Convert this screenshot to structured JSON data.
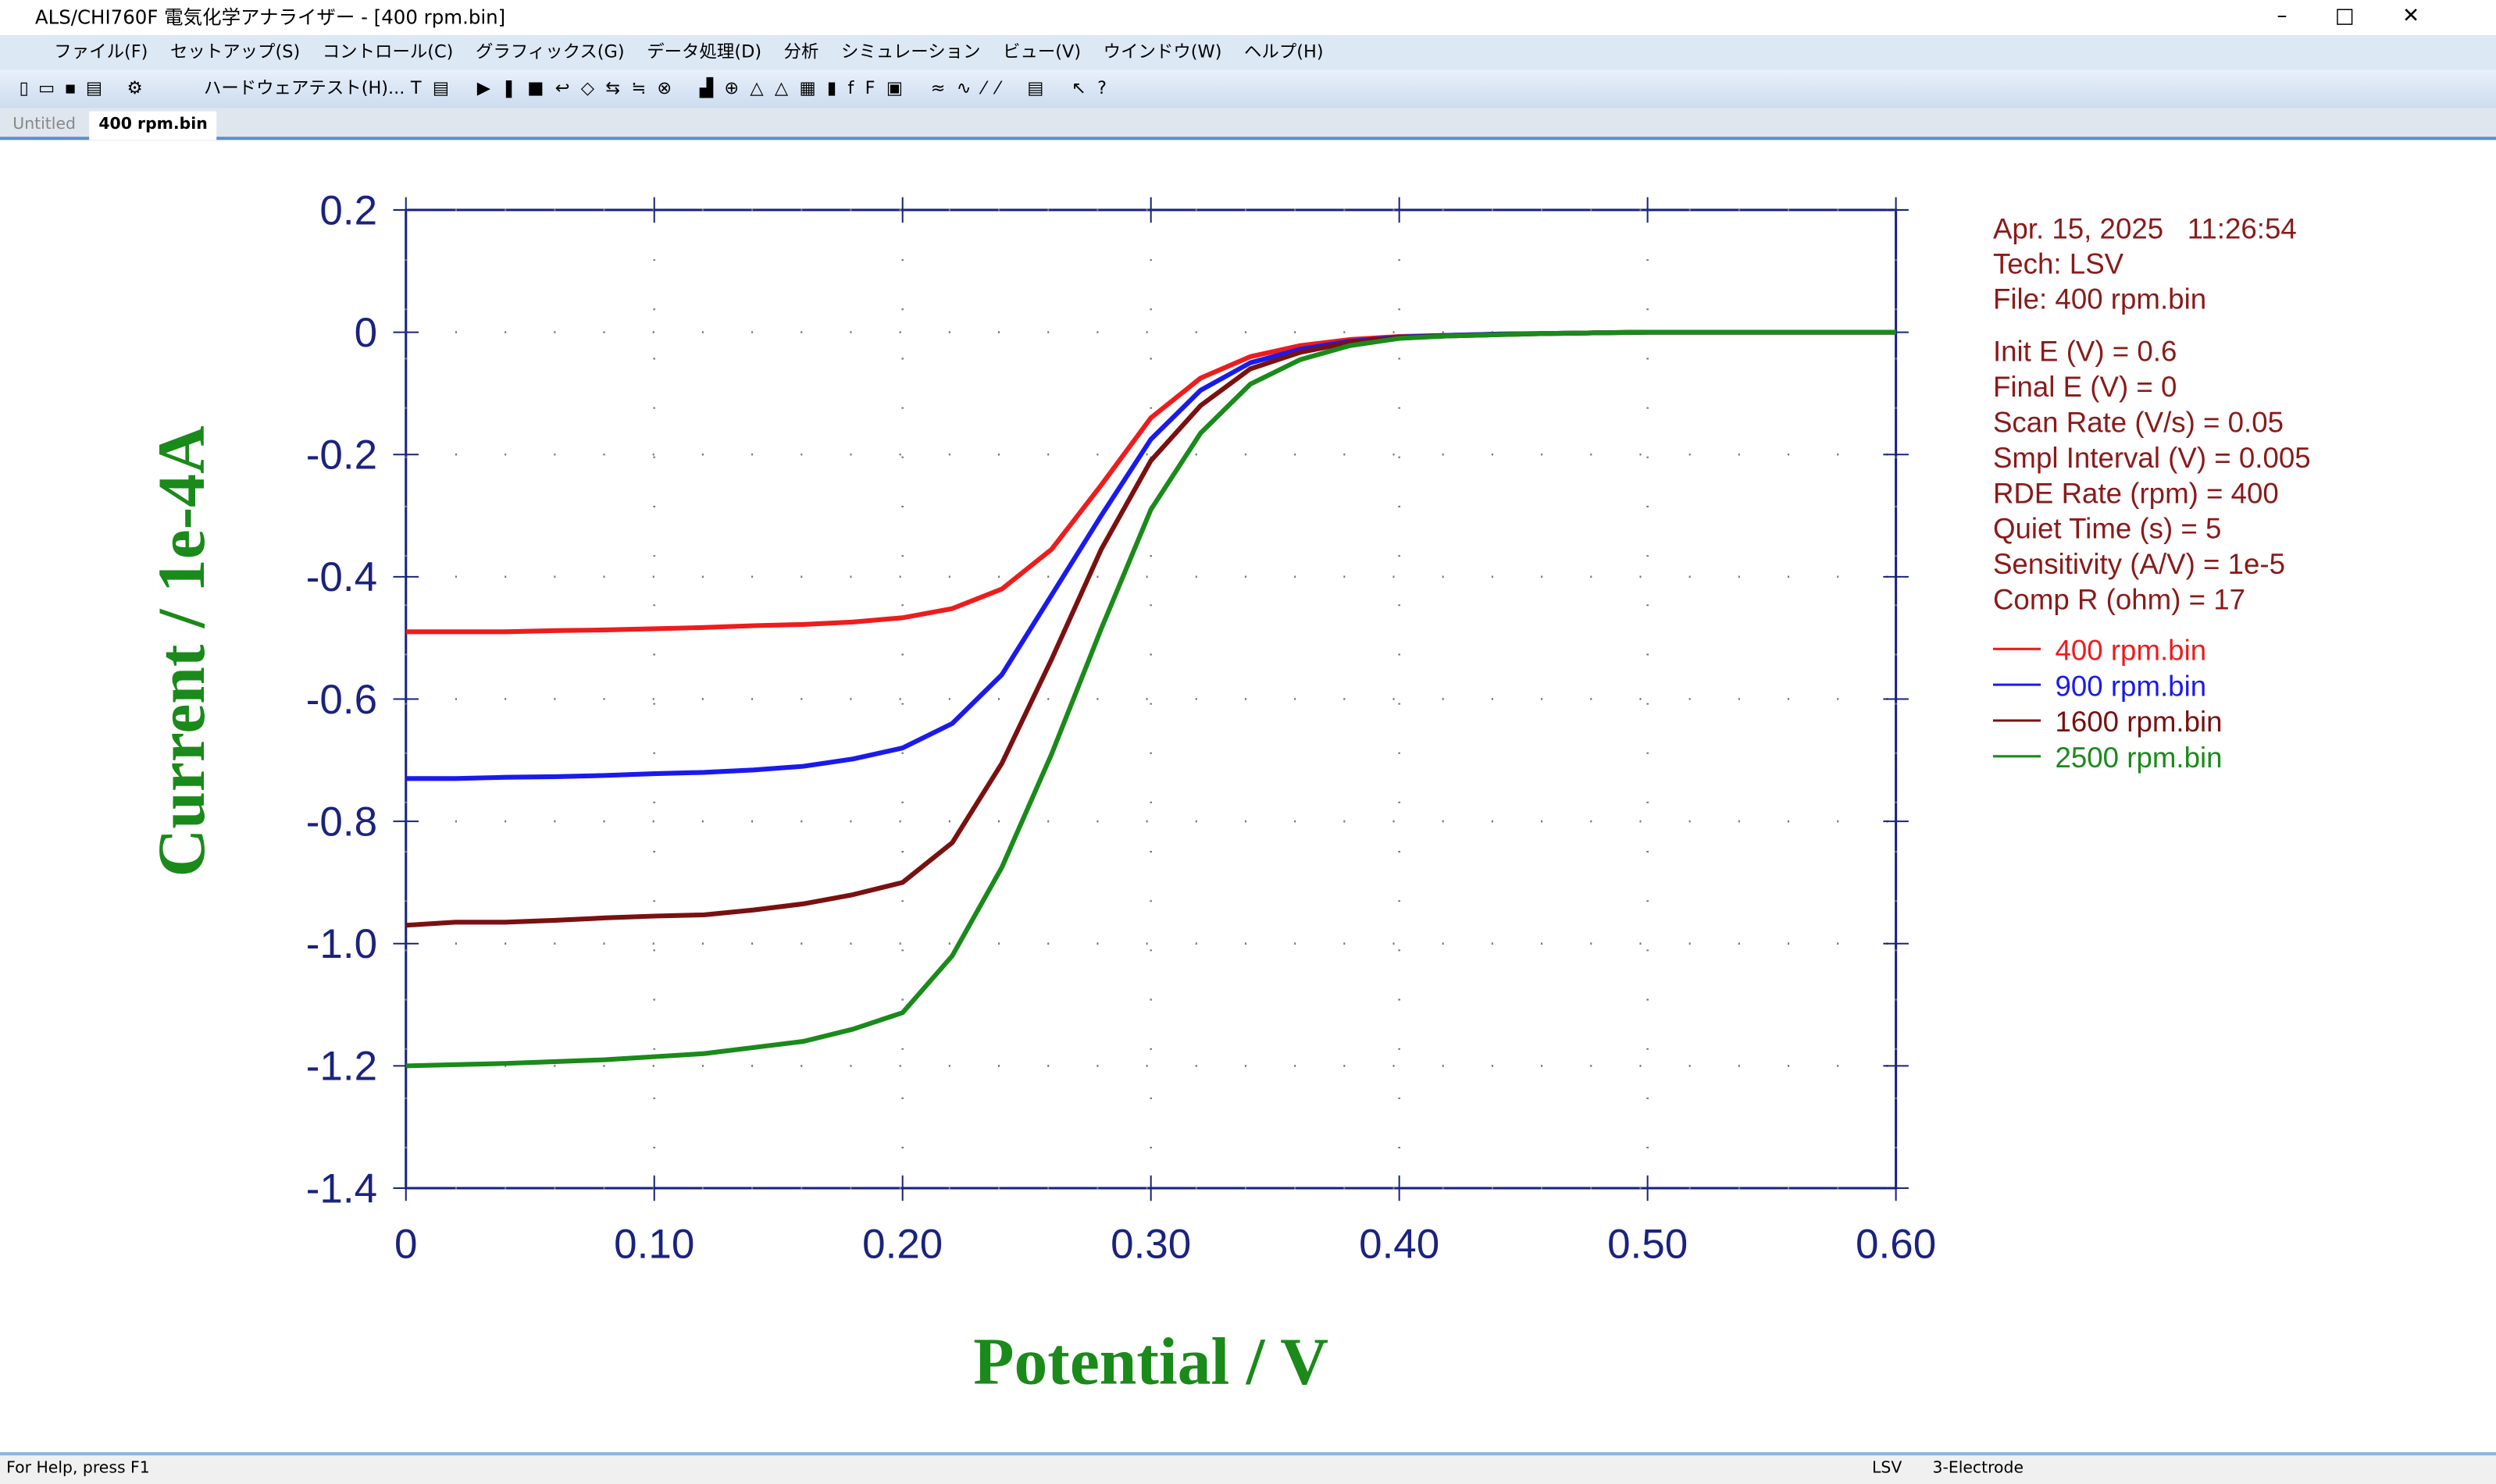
{
  "window": {
    "title": "ALS/CHI760F 電気化学アナライザー - [400 rpm.bin]",
    "menu": [
      "ファイル(F)",
      "セットアップ(S)",
      "コントロール(C)",
      "グラフィックス(G)",
      "データ処理(D)",
      "分析",
      "シミュレーション",
      "ビュー(V)",
      "ウインドウ(W)",
      "ヘルプ(H)"
    ],
    "toolbar_label": "ハードウェアテスト(H)...",
    "tabs": [
      "Untitled",
      "400 rpm.bin"
    ],
    "status": {
      "help": "For Help, press F1",
      "technique": "LSV",
      "electrode": "3-Electrode"
    }
  },
  "chart_data": {
    "type": "line",
    "xlabel": "Potential / V",
    "ylabel": "Current / 1e-4A",
    "x": [
      0,
      0.02,
      0.04,
      0.06,
      0.08,
      0.1,
      0.12,
      0.14,
      0.16,
      0.18,
      0.2,
      0.22,
      0.24,
      0.26,
      0.28,
      0.3,
      0.32,
      0.34,
      0.36,
      0.38,
      0.4,
      0.42,
      0.44,
      0.46,
      0.48,
      0.5,
      0.52,
      0.54,
      0.56,
      0.58,
      0.6
    ],
    "series": [
      {
        "name": "400 rpm.bin",
        "color": "#ee1c1c",
        "values": [
          -0.49,
          -0.49,
          -0.49,
          -0.488,
          -0.487,
          -0.485,
          -0.483,
          -0.48,
          -0.478,
          -0.474,
          -0.467,
          -0.452,
          -0.42,
          -0.355,
          -0.25,
          -0.14,
          -0.075,
          -0.04,
          -0.022,
          -0.012,
          -0.007,
          -0.005,
          -0.003,
          -0.002,
          -0.001,
          0,
          0,
          0,
          0,
          0,
          0
        ]
      },
      {
        "name": "900 rpm.bin",
        "color": "#1a1aee",
        "values": [
          -0.73,
          -0.73,
          -0.728,
          -0.727,
          -0.725,
          -0.722,
          -0.72,
          -0.716,
          -0.71,
          -0.698,
          -0.68,
          -0.64,
          -0.56,
          -0.43,
          -0.3,
          -0.175,
          -0.095,
          -0.05,
          -0.028,
          -0.015,
          -0.008,
          -0.005,
          -0.003,
          -0.002,
          -0.001,
          0,
          0,
          0,
          0,
          0,
          0
        ]
      },
      {
        "name": "1600 rpm.bin",
        "color": "#7a1010",
        "values": [
          -0.97,
          -0.965,
          -0.965,
          -0.962,
          -0.958,
          -0.955,
          -0.953,
          -0.945,
          -0.935,
          -0.92,
          -0.9,
          -0.835,
          -0.705,
          -0.535,
          -0.355,
          -0.21,
          -0.12,
          -0.06,
          -0.033,
          -0.017,
          -0.009,
          -0.006,
          -0.004,
          -0.002,
          -0.001,
          0,
          0,
          0,
          0,
          0,
          0
        ]
      },
      {
        "name": "2500 rpm.bin",
        "color": "#1a8a1a",
        "values": [
          -1.2,
          -1.198,
          -1.196,
          -1.193,
          -1.19,
          -1.185,
          -1.18,
          -1.17,
          -1.16,
          -1.14,
          -1.113,
          -1.02,
          -0.875,
          -0.69,
          -0.485,
          -0.29,
          -0.165,
          -0.085,
          -0.045,
          -0.022,
          -0.01,
          -0.006,
          -0.004,
          -0.002,
          -0.001,
          0,
          0,
          0,
          0,
          0,
          0
        ]
      }
    ],
    "xlim": [
      0,
      0.6
    ],
    "ylim": [
      -1.4,
      0.2
    ],
    "xticks": [
      0,
      {
        "value": 0.1,
        "label": "0.10"
      },
      {
        "value": 0.2,
        "label": "0.20"
      },
      {
        "value": 0.3,
        "label": "0.30"
      },
      {
        "value": 0.4,
        "label": "0.40"
      },
      {
        "value": 0.5,
        "label": "0.50"
      },
      {
        "value": 0.6,
        "label": "0.60"
      }
    ],
    "yticks": [
      -1.4,
      -1.2,
      {
        "value": -1,
        "label": "-1.0"
      },
      -0.8,
      -0.6,
      -0.4,
      -0.2,
      0,
      0.2
    ],
    "grid": true,
    "info": [
      "Apr. 15, 2025   11:26:54",
      "Tech: LSV",
      "File: 400 rpm.bin",
      "Init E (V) = 0.6",
      "Final E (V) = 0",
      "Scan Rate (V/s) = 0.05",
      "Smpl Interval (V) = 0.005",
      "RDE Rate (rpm) = 400",
      "Quiet Time (s) = 5",
      "Sensitivity (A/V) = 1e-5",
      "Comp R (ohm) = 17"
    ]
  }
}
